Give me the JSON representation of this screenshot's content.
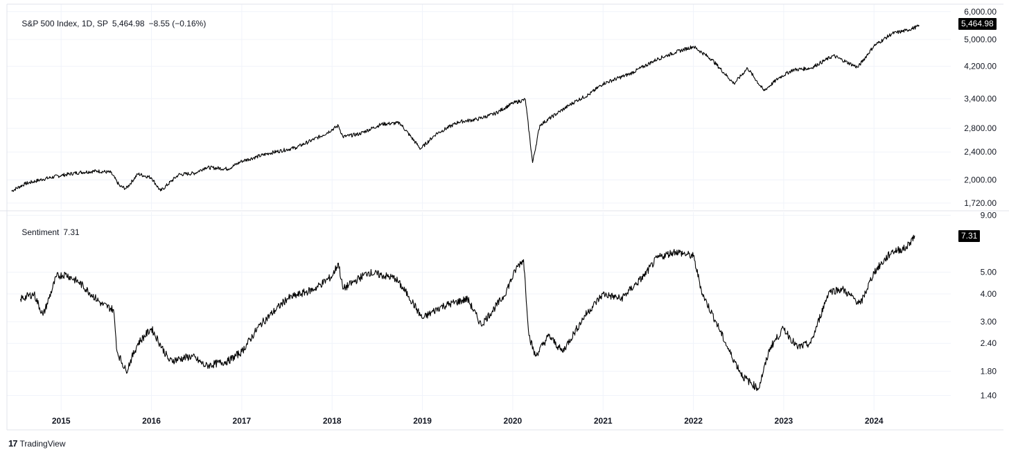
{
  "chart_data": [
    {
      "type": "line",
      "title": "S&P 500 Index, 1D, SP",
      "symbol": "S&P 500 Index",
      "interval": "1D",
      "exchange": "SP",
      "last_value": "5,464.98",
      "change": "−8.55 (−0.16%)",
      "scale": "log",
      "ylim": [
        1650,
        6300
      ],
      "y_ticks": [
        "6,000.00",
        "5,000.00",
        "4,200.00",
        "3,400.00",
        "2,800.00",
        "2,400.00",
        "2,000.00",
        "1,720.00"
      ],
      "y_tick_values": [
        6000,
        5000,
        4200,
        3400,
        2800,
        2400,
        2000,
        1720
      ],
      "line_color": "#000000",
      "grid": true,
      "x": [
        2014.45,
        2014.6,
        2014.8,
        2015.0,
        2015.2,
        2015.4,
        2015.55,
        2015.65,
        2015.72,
        2015.85,
        2016.0,
        2016.1,
        2016.3,
        2016.48,
        2016.6,
        2016.85,
        2017.0,
        2017.3,
        2017.6,
        2017.9,
        2018.07,
        2018.12,
        2018.3,
        2018.55,
        2018.75,
        2018.98,
        2019.15,
        2019.4,
        2019.6,
        2019.8,
        2020.0,
        2020.14,
        2020.22,
        2020.3,
        2020.5,
        2020.7,
        2020.85,
        2021.0,
        2021.3,
        2021.6,
        2021.8,
        2022.0,
        2022.2,
        2022.45,
        2022.6,
        2022.78,
        2022.95,
        2023.1,
        2023.3,
        2023.55,
        2023.82,
        2024.0,
        2024.2,
        2024.35,
        2024.5
      ],
      "values": [
        1860,
        1950,
        2010,
        2060,
        2100,
        2120,
        2100,
        1920,
        1890,
        2080,
        2030,
        1860,
        2070,
        2090,
        2170,
        2150,
        2260,
        2380,
        2470,
        2680,
        2850,
        2650,
        2700,
        2880,
        2900,
        2450,
        2700,
        2920,
        2970,
        3080,
        3300,
        3380,
        2240,
        2860,
        3100,
        3350,
        3500,
        3750,
        4000,
        4400,
        4600,
        4780,
        4400,
        3750,
        4150,
        3580,
        3900,
        4100,
        4150,
        4500,
        4170,
        4800,
        5200,
        5300,
        5460
      ]
    },
    {
      "type": "line",
      "title": "Sentiment",
      "last_value": "7.31",
      "scale": "log",
      "ylim": [
        1.2,
        9.3
      ],
      "y_ticks": [
        "9.00",
        "5.00",
        "4.00",
        "3.00",
        "2.40",
        "1.80",
        "1.40"
      ],
      "y_tick_values": [
        9,
        5,
        4,
        3,
        2.4,
        1.8,
        1.4
      ],
      "line_color": "#000000",
      "grid": true,
      "x": [
        2014.55,
        2014.7,
        2014.8,
        2014.95,
        2015.05,
        2015.2,
        2015.45,
        2015.58,
        2015.62,
        2015.72,
        2015.85,
        2016.0,
        2016.2,
        2016.45,
        2016.6,
        2016.85,
        2017.0,
        2017.2,
        2017.5,
        2017.8,
        2018.0,
        2018.07,
        2018.12,
        2018.4,
        2018.7,
        2018.85,
        2019.0,
        2019.2,
        2019.5,
        2019.65,
        2019.9,
        2020.05,
        2020.12,
        2020.18,
        2020.25,
        2020.4,
        2020.55,
        2020.8,
        2021.0,
        2021.2,
        2021.45,
        2021.6,
        2021.8,
        2022.0,
        2022.1,
        2022.25,
        2022.4,
        2022.55,
        2022.72,
        2022.85,
        2023.0,
        2023.15,
        2023.3,
        2023.5,
        2023.65,
        2023.85,
        2024.0,
        2024.2,
        2024.35,
        2024.45
      ],
      "values": [
        3.8,
        4.0,
        3.2,
        4.8,
        4.9,
        4.5,
        3.6,
        3.4,
        2.2,
        1.8,
        2.4,
        2.8,
        2.0,
        2.1,
        1.9,
        2.0,
        2.2,
        2.9,
        3.8,
        4.2,
        4.8,
        5.5,
        4.2,
        5.0,
        4.7,
        3.9,
        3.1,
        3.5,
        3.8,
        2.9,
        3.9,
        5.3,
        5.7,
        2.6,
        2.1,
        2.6,
        2.2,
        3.2,
        4.0,
        3.8,
        4.8,
        5.8,
        6.2,
        5.9,
        4.0,
        3.0,
        2.2,
        1.7,
        1.5,
        2.3,
        2.8,
        2.3,
        2.4,
        4.1,
        4.2,
        3.6,
        5.0,
        6.2,
        6.4,
        7.3
      ]
    }
  ],
  "x_axis": {
    "ticks": [
      "2015",
      "2016",
      "2017",
      "2018",
      "2019",
      "2020",
      "2021",
      "2022",
      "2023",
      "2024"
    ],
    "tick_values": [
      2015,
      2016,
      2017,
      2018,
      2019,
      2020,
      2021,
      2022,
      2023,
      2024
    ]
  },
  "brand": {
    "logo": "17",
    "name": "TradingView"
  },
  "colors": {
    "grid": "#f0f3fa",
    "line": "#000000",
    "text": "#131722",
    "divider": "#e0e3eb"
  }
}
